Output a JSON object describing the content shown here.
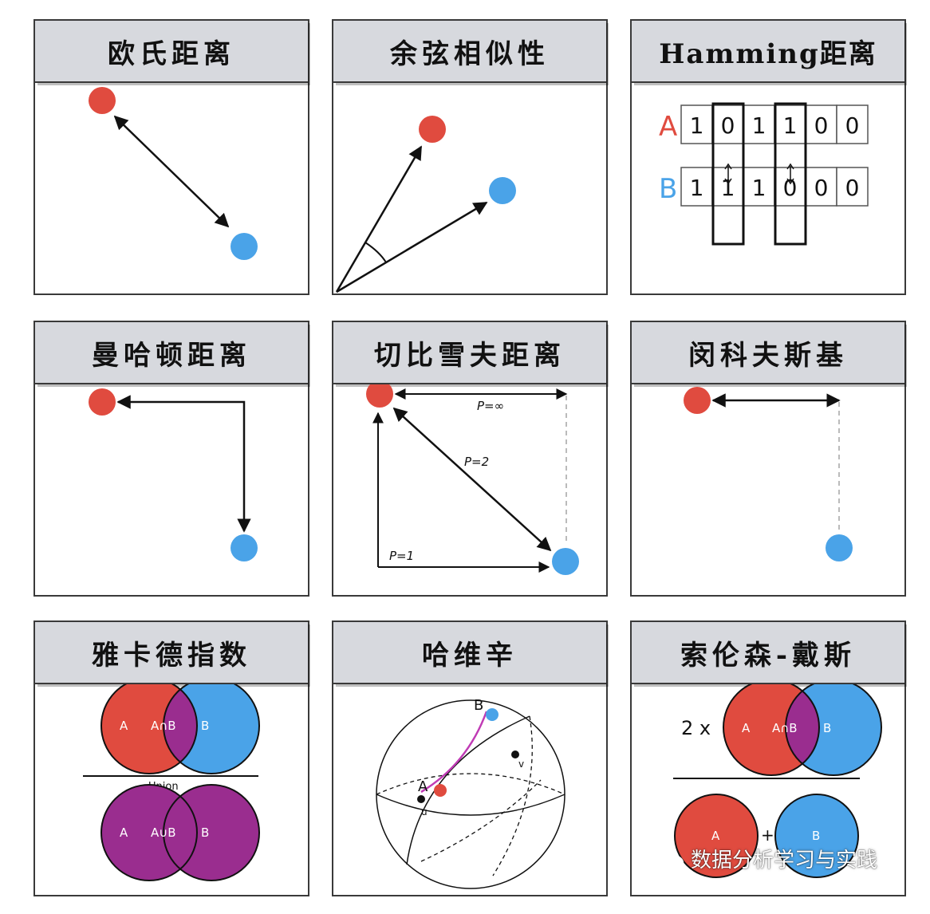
{
  "colors": {
    "point_a": "#e04b3f",
    "point_b": "#4aa3e8",
    "hamming_a": "#e04b3f",
    "hamming_b": "#4aa3e8",
    "intersection": "#9a2d8f",
    "header_bg": "#d7d9de",
    "great_circle": "#c03bb5"
  },
  "panels": {
    "euclidean": {
      "title": "欧氏距离"
    },
    "cosine": {
      "title": "余弦相似性"
    },
    "hamming": {
      "title": "Hamming距离",
      "label_a": "A",
      "label_b": "B",
      "bits_a": [
        "1",
        "0",
        "1",
        "1",
        "0",
        "0"
      ],
      "bits_b": [
        "1",
        "1",
        "1",
        "0",
        "0",
        "0"
      ]
    },
    "manhattan": {
      "title": "曼哈顿距离"
    },
    "chebyshev": {
      "title": "切比雪夫距离",
      "label_inf": "P=∞",
      "label_p2": "P=2",
      "label_p1": "P=1"
    },
    "minkowski": {
      "title": "闵科夫斯基"
    },
    "jaccard": {
      "title": "雅卡德指数",
      "label_a": "A",
      "label_b": "B",
      "intersection_label": "A∩B",
      "union_caption": "Union",
      "union_label": "A∪B"
    },
    "haversine": {
      "title": "哈维辛",
      "label_a": "A",
      "label_b": "B",
      "label_u": "u",
      "label_v": "v"
    },
    "sorensen": {
      "title": "索伦森-戴斯",
      "multiplier": "2 x",
      "label_a": "A",
      "label_b": "B",
      "intersection_label": "A∩B",
      "plus": "+"
    }
  },
  "watermark": {
    "text": "数据分析学习与实践"
  }
}
